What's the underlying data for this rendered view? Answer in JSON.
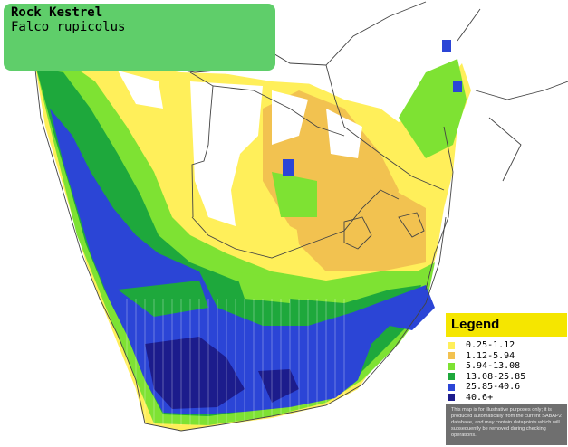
{
  "title": {
    "common_name": "Rock Kestrel",
    "scientific_name": "Falco rupicolus"
  },
  "legend": {
    "heading": "Legend",
    "entries": [
      {
        "label": "0.25-1.12",
        "color": "#ffef5a"
      },
      {
        "label": "1.12-5.94",
        "color": "#f2c250"
      },
      {
        "label": "5.94-13.08",
        "color": "#7ee233"
      },
      {
        "label": "13.08-25.85",
        "color": "#1ea83c"
      },
      {
        "label": "25.85-40.6",
        "color": "#2b45d6"
      },
      {
        "label": "40.6+",
        "color": "#1c1c8c"
      }
    ],
    "disclaimer": "This map is for illustrative purposes only; it is produced automatically from the current SABAP2 database, and may contain datapoints which will subsequently be removed during checking operations."
  },
  "colors": {
    "background": "#ffffff",
    "title_box": "#5fce6a",
    "legend_header": "#f5e600",
    "legend_panel": "#6f6f6f",
    "border_lines": "#444444"
  }
}
